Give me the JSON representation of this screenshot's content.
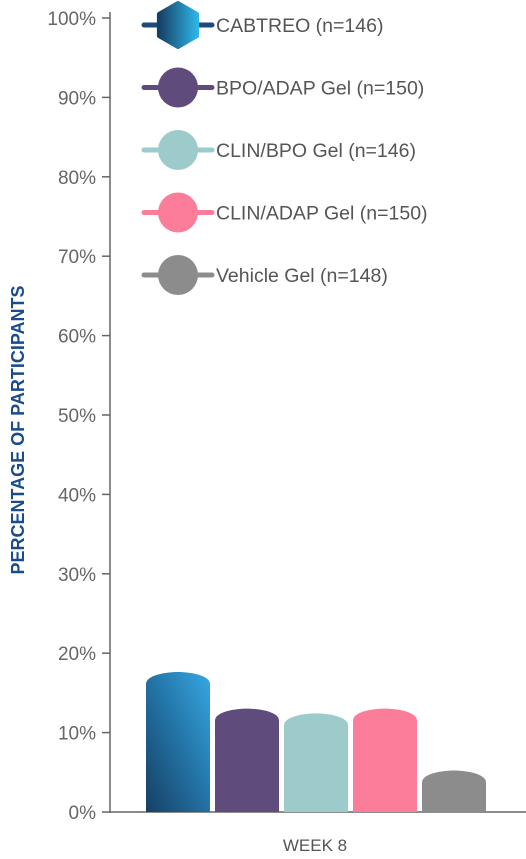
{
  "chart_data": {
    "type": "bar",
    "title": "",
    "xlabel": "",
    "ylabel": "PERCENTAGE OF PARTICIPANTS",
    "categories": [
      "WEEK 8"
    ],
    "ylim": [
      0,
      100
    ],
    "yticks": [
      0,
      10,
      20,
      30,
      40,
      50,
      60,
      70,
      80,
      90,
      100
    ],
    "ytick_labels": [
      "0%",
      "10%",
      "20%",
      "30%",
      "40%",
      "50%",
      "60%",
      "70%",
      "80%",
      "90%",
      "100%"
    ],
    "grid": false,
    "legend_position": "top-left",
    "series": [
      {
        "name": "CABTREO (n=146)",
        "values": [
          17.5
        ],
        "color": "#1f8fce"
      },
      {
        "name": "BPO/ADAP Gel (n=150)",
        "values": [
          12.9
        ],
        "color": "#604c7c"
      },
      {
        "name": "CLIN/BPO Gel (n=146)",
        "values": [
          12.3
        ],
        "color": "#9dcbcb"
      },
      {
        "name": "CLIN/ADAP Gel (n=150)",
        "values": [
          12.9
        ],
        "color": "#fb7d99"
      },
      {
        "name": "Vehicle Gel (n=148)",
        "values": [
          5.1
        ],
        "color": "#8c8c8c"
      }
    ]
  }
}
